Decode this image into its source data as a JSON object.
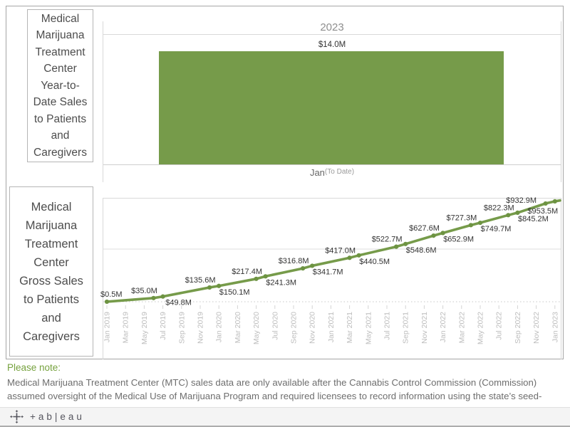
{
  "top_chart": {
    "panel_title": "Medical Marijuana Treatment Center Year-to-Date Sales to Patients and Caregivers",
    "title_lines": [
      "Medical",
      "Marijuana",
      "Treatment",
      "Center",
      "Year-to-",
      "Date Sales",
      "to Patients",
      "and",
      "Caregivers"
    ],
    "year_header": "2023",
    "bar_value_label": "$14.0M",
    "x_axis_label": "Jan",
    "x_axis_sublabel": "(To Date)"
  },
  "bottom_chart": {
    "panel_title": "Medical Marijuana Treatment Center Gross Sales to Patients and Caregivers",
    "title_lines": [
      "Medical",
      "Marijuana",
      "Treatment",
      "Center",
      "Gross Sales",
      "to Patients",
      "and",
      "Caregivers"
    ]
  },
  "note": {
    "heading": "Please note:",
    "body": "Medical Marijuana Treatment Center (MTC) sales data are only available after the Cannabis Control Commission (Commission) assumed oversight of the Medical Use of Marijuana Program and required licensees to record information using the state’s seed-"
  },
  "footer": {
    "wordmark": "+ab|eau"
  },
  "colors": {
    "accent_green": "#769b4a",
    "note_green": "#76a23e",
    "tick_gray": "#bdbdbd"
  },
  "chart_data": [
    {
      "type": "bar",
      "title": "Medical Marijuana Treatment Center Year-to-Date Sales to Patients and Caregivers",
      "column_header": "2023",
      "categories": [
        "Jan (To Date)"
      ],
      "values_musd": [
        14.0
      ],
      "value_labels": [
        "$14.0M"
      ],
      "ylim_musd": [
        0,
        16
      ],
      "bar_color": "#769b4a"
    },
    {
      "type": "line",
      "title": "Medical Marijuana Treatment Center Gross Sales to Patients and Caregivers",
      "x_ticks": [
        "Jan 2019",
        "Mar 2019",
        "May 2019",
        "Jul 2019",
        "Sep 2019",
        "Nov 2019",
        "Jan 2020",
        "Mar 2020",
        "May 2020",
        "Jul 2020",
        "Sep 2020",
        "Nov 2020",
        "Jan 2021",
        "Mar 2021",
        "May 2021",
        "Jul 2021",
        "Sep 2021",
        "Nov 2021",
        "Jan 2022",
        "Mar 2022",
        "May 2022",
        "Jul 2022",
        "Sep 2022",
        "Nov 2022",
        "Jan 2023"
      ],
      "x_range_months": [
        0,
        48
      ],
      "ylim_musd": [
        0,
        1000
      ],
      "gridline_musd": 500,
      "line_color": "#769b4a",
      "points": [
        {
          "label": "$0.5M",
          "value_musd": 0.5,
          "x_month_index": 0
        },
        {
          "label": "$35.0M",
          "value_musd": 35.0,
          "x_month_index": 5
        },
        {
          "label": "$49.8M",
          "value_musd": 49.8,
          "x_month_index": 6
        },
        {
          "label": "$135.6M",
          "value_musd": 135.6,
          "x_month_index": 11
        },
        {
          "label": "$150.1M",
          "value_musd": 150.1,
          "x_month_index": 12
        },
        {
          "label": "$217.4M",
          "value_musd": 217.4,
          "x_month_index": 16
        },
        {
          "label": "$241.3M",
          "value_musd": 241.3,
          "x_month_index": 17
        },
        {
          "label": "$316.8M",
          "value_musd": 316.8,
          "x_month_index": 21
        },
        {
          "label": "$341.7M",
          "value_musd": 341.7,
          "x_month_index": 22
        },
        {
          "label": "$417.0M",
          "value_musd": 417.0,
          "x_month_index": 26
        },
        {
          "label": "$440.5M",
          "value_musd": 440.5,
          "x_month_index": 27
        },
        {
          "label": "$522.7M",
          "value_musd": 522.7,
          "x_month_index": 31
        },
        {
          "label": "$548.6M",
          "value_musd": 548.6,
          "x_month_index": 32
        },
        {
          "label": "$627.6M",
          "value_musd": 627.6,
          "x_month_index": 35
        },
        {
          "label": "$652.9M",
          "value_musd": 652.9,
          "x_month_index": 36
        },
        {
          "label": "$727.3M",
          "value_musd": 727.3,
          "x_month_index": 39
        },
        {
          "label": "$749.7M",
          "value_musd": 749.7,
          "x_month_index": 40
        },
        {
          "label": "$822.3M",
          "value_musd": 822.3,
          "x_month_index": 43
        },
        {
          "label": "$845.2M",
          "value_musd": 845.2,
          "x_month_index": 44
        },
        {
          "label": "$932.9M",
          "value_musd": 932.9,
          "x_month_index": 47
        },
        {
          "label": "$953.5M",
          "value_musd": 953.5,
          "x_month_index": 48
        }
      ]
    }
  ]
}
